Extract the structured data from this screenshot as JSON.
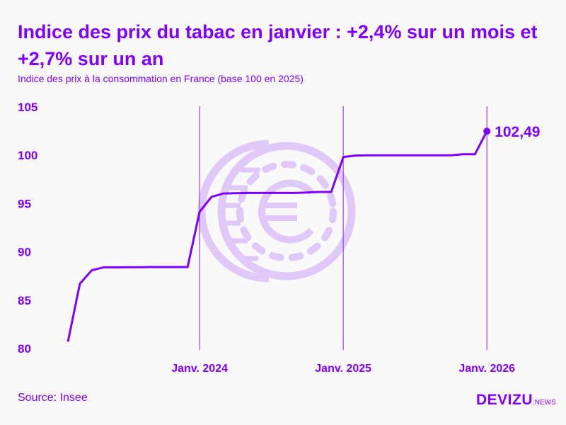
{
  "title": "Indice des prix du tabac en janvier : +2,4% sur un mois et +2,7% sur un an",
  "subtitle": "Indice des prix à la consommation en France (base 100 en 2025)",
  "source": "Source: Insee",
  "logo": {
    "main": "DEVIZU",
    "suffix": ".NEWS"
  },
  "colors": {
    "accent": "#8000ff",
    "watermark": "#e0c8f8"
  },
  "watermark_icon": "euro-coin-icon",
  "chart_data": {
    "type": "line",
    "title": "Indice des prix du tabac en janvier : +2,4% sur un mois et +2,7% sur un an",
    "subtitle": "Indice des prix à la consommation en France (base 100 en 2025)",
    "x": [
      "2023-02",
      "2023-03",
      "2023-04",
      "2023-05",
      "2023-06",
      "2023-07",
      "2023-08",
      "2023-09",
      "2023-10",
      "2023-11",
      "2023-12",
      "2024-01",
      "2024-02",
      "2024-03",
      "2024-04",
      "2024-05",
      "2024-06",
      "2024-07",
      "2024-08",
      "2024-09",
      "2024-10",
      "2024-11",
      "2024-12",
      "2025-01",
      "2025-02",
      "2025-03",
      "2025-04",
      "2025-05",
      "2025-06",
      "2025-07",
      "2025-08",
      "2025-09",
      "2025-10",
      "2025-11",
      "2025-12",
      "2026-01"
    ],
    "values": [
      80.7,
      86.7,
      88.1,
      88.4,
      88.4,
      88.42,
      88.42,
      88.43,
      88.43,
      88.43,
      88.43,
      94.15,
      95.7,
      96.05,
      96.08,
      96.1,
      96.1,
      96.1,
      96.1,
      96.1,
      96.15,
      96.2,
      96.2,
      99.82,
      99.97,
      100.0,
      100.0,
      100.0,
      100.0,
      100.0,
      100.0,
      100.0,
      100.0,
      100.1,
      100.1,
      102.49
    ],
    "ylim": [
      80,
      105
    ],
    "yticks": [
      80,
      85,
      90,
      95,
      100,
      105
    ],
    "xticks": [
      {
        "x": "2024-01",
        "label": "Janv. 2024"
      },
      {
        "x": "2025-01",
        "label": "Janv. 2025"
      },
      {
        "x": "2026-01",
        "label": "Janv. 2026"
      }
    ],
    "last_label": "102,49",
    "grid": "vertical lines at January",
    "xlabel": "",
    "ylabel": ""
  }
}
